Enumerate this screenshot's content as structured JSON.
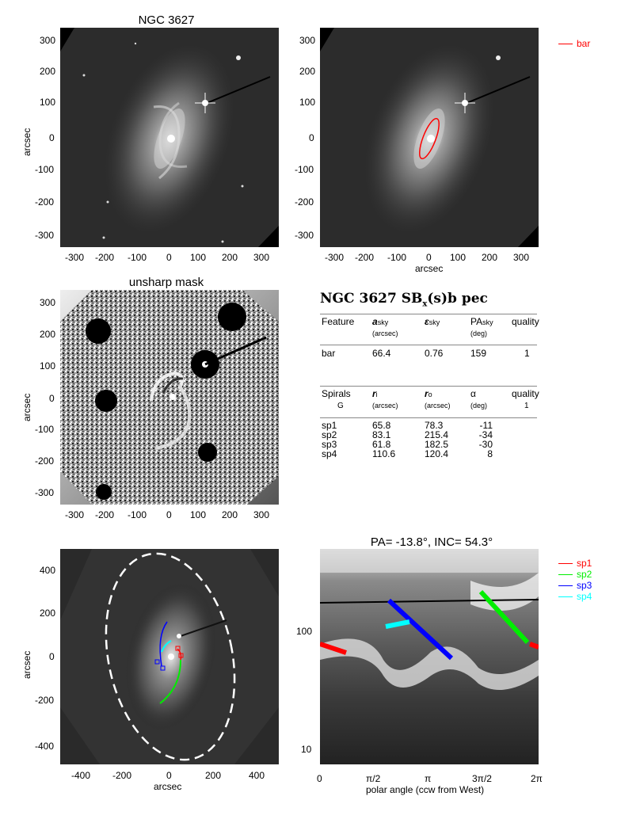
{
  "panels": {
    "p1": {
      "title": "NGC 3627",
      "ylabel": "arcsec",
      "xticks": [
        "-300",
        "-200",
        "-100",
        "0",
        "100",
        "200",
        "300"
      ],
      "yticks": [
        "300",
        "200",
        "100",
        "0",
        "-100",
        "-200",
        "-300"
      ]
    },
    "p2": {
      "xlabel": "arcsec",
      "xticks": [
        "-300",
        "-200",
        "-100",
        "0",
        "100",
        "200",
        "300"
      ],
      "yticks": [
        "300",
        "200",
        "100",
        "0",
        "-100",
        "-200",
        "-300"
      ],
      "legend": [
        {
          "label": "bar",
          "color": "#ff0000"
        }
      ]
    },
    "p3": {
      "title": "unsharp mask",
      "ylabel": "arcsec",
      "xticks": [
        "-300",
        "-200",
        "-100",
        "0",
        "100",
        "200",
        "300"
      ],
      "yticks": [
        "300",
        "200",
        "100",
        "0",
        "-100",
        "-200",
        "-300"
      ]
    },
    "p5": {
      "xlabel": "arcsec",
      "ylabel": "arcsec",
      "xticks": [
        "-400",
        "-200",
        "0",
        "200",
        "400"
      ],
      "yticks": [
        "400",
        "200",
        "0",
        "-200",
        "-400"
      ]
    },
    "p6": {
      "title": "PA= -13.8°, INC=  54.3°",
      "xlabel": "polar angle (ccw from West)",
      "xticks": [
        "0",
        "π/2",
        "π",
        "3π/2",
        "2π"
      ],
      "yticks": [
        "100",
        "10"
      ],
      "legend": [
        {
          "label": "sp1",
          "color": "#ff0000"
        },
        {
          "label": "sp2",
          "color": "#00ee00"
        },
        {
          "label": "sp3",
          "color": "#0000ff"
        },
        {
          "label": "sp4",
          "color": "#00ffff"
        }
      ]
    }
  },
  "table": {
    "title_main": "NGC 3627  SB",
    "title_sub": "x",
    "title_rest": "(s)b pec",
    "bar_header": {
      "feature": "Feature",
      "a": "a",
      "a_sub": "sky",
      "a_unit": "(arcsec)",
      "eps": "ε",
      "eps_sub": "sky",
      "pa": "PA",
      "pa_sub": "sky",
      "pa_unit": "(deg)",
      "quality": "quality"
    },
    "bar_row": {
      "feature": "bar",
      "a": "66.4",
      "eps": "0.76",
      "pa": "159",
      "quality": "1"
    },
    "spiral_header": {
      "feature": "Spirals",
      "feature2": "G",
      "ri": "r",
      "ri_sub": "i",
      "ri_unit": "(arcsec)",
      "ro": "r",
      "ro_sub": "o",
      "ro_unit": "(arcsec)",
      "alpha": "α",
      "alpha_unit": "(deg)",
      "quality": "quality",
      "quality2": "1"
    },
    "spiral_rows": [
      {
        "name": "sp1",
        "ri": "65.8",
        "ro": "78.3",
        "alpha": "-11"
      },
      {
        "name": "sp2",
        "ri": "83.1",
        "ro": "215.4",
        "alpha": "-34"
      },
      {
        "name": "sp3",
        "ri": "61.8",
        "ro": "182.5",
        "alpha": "-30"
      },
      {
        "name": "sp4",
        "ri": "110.6",
        "ro": "120.4",
        "alpha": "8"
      }
    ]
  },
  "colors": {
    "bar": "#ff0000",
    "sp1": "#ff0000",
    "sp2": "#00ee00",
    "sp3": "#0000ff",
    "sp4": "#00ffff"
  }
}
